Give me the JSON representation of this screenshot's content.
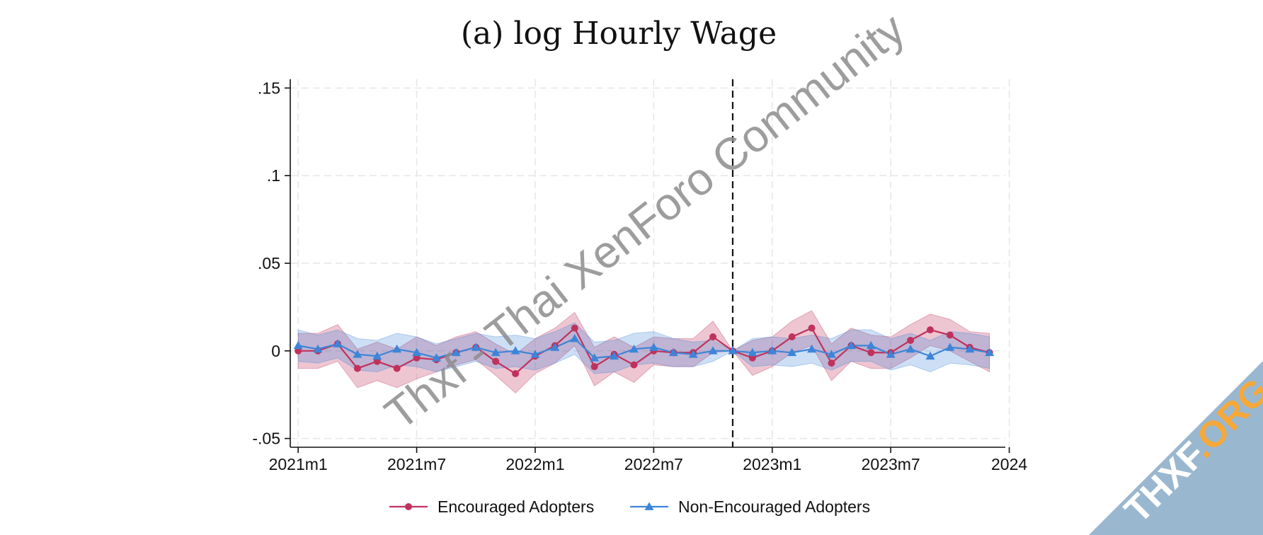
{
  "chart_data": {
    "type": "line",
    "title": "(a) log Hourly Wage",
    "xlabel": "",
    "ylabel": "",
    "x_ticks": [
      "2021m1",
      "2021m7",
      "2022m1",
      "2022m7",
      "2023m1",
      "2023m7",
      "2024"
    ],
    "x_tick_values": [
      0,
      6,
      12,
      18,
      24,
      30,
      36
    ],
    "xlim": [
      -0.4,
      35.8
    ],
    "y_ticks": [
      ".15",
      ".1",
      ".05",
      "0",
      "-.05"
    ],
    "y_tick_values": [
      0.15,
      0.1,
      0.05,
      0,
      -0.05
    ],
    "ylim": [
      -0.055,
      0.155
    ],
    "grid": true,
    "event_line_x": 22,
    "legend": {
      "position": "bottom-center"
    },
    "x": [
      0,
      1,
      2,
      3,
      4,
      5,
      6,
      7,
      8,
      9,
      10,
      11,
      12,
      13,
      14,
      15,
      16,
      17,
      18,
      19,
      20,
      21,
      22,
      23,
      24,
      25,
      26,
      27,
      28,
      29,
      30,
      31,
      32,
      33,
      34,
      35
    ],
    "series": [
      {
        "name": "Encouraged Adopters",
        "color": "#c0325d",
        "marker": "circle",
        "values": [
          0.0,
          0.0,
          0.004,
          -0.01,
          -0.006,
          -0.01,
          -0.004,
          -0.005,
          -0.001,
          0.002,
          -0.006,
          -0.013,
          -0.003,
          0.003,
          0.013,
          -0.009,
          -0.002,
          -0.008,
          0.0,
          -0.001,
          -0.001,
          0.008,
          0.0,
          -0.004,
          0.0,
          0.008,
          0.013,
          -0.007,
          0.003,
          -0.001,
          -0.001,
          0.006,
          0.012,
          0.009,
          0.002,
          -0.001
        ],
        "ci_low": [
          -0.01,
          -0.01,
          -0.006,
          -0.021,
          -0.017,
          -0.021,
          -0.016,
          -0.012,
          -0.008,
          -0.005,
          -0.014,
          -0.024,
          -0.013,
          -0.007,
          0.003,
          -0.02,
          -0.012,
          -0.018,
          -0.008,
          -0.009,
          -0.009,
          -0.001,
          0.0,
          -0.014,
          -0.009,
          -0.001,
          0.003,
          -0.017,
          -0.006,
          -0.01,
          -0.01,
          -0.004,
          0.003,
          0.0,
          -0.006,
          -0.012
        ],
        "ci_high": [
          0.01,
          0.01,
          0.015,
          0.001,
          0.005,
          0.001,
          0.008,
          0.003,
          0.008,
          0.011,
          0.004,
          -0.002,
          0.007,
          0.013,
          0.022,
          0.002,
          0.008,
          0.002,
          0.008,
          0.007,
          0.007,
          0.017,
          0.0,
          0.006,
          0.008,
          0.017,
          0.023,
          0.004,
          0.013,
          0.009,
          0.008,
          0.015,
          0.021,
          0.018,
          0.011,
          0.01
        ]
      },
      {
        "name": "Non-Encouraged Adopters",
        "color": "#3d85d8",
        "marker": "triangle",
        "values": [
          0.003,
          0.001,
          0.004,
          -0.002,
          -0.003,
          0.001,
          -0.001,
          -0.004,
          -0.001,
          0.002,
          -0.001,
          0.0,
          -0.002,
          0.002,
          0.007,
          -0.004,
          -0.003,
          0.001,
          0.002,
          -0.001,
          -0.002,
          0.0,
          0.0,
          -0.001,
          0.0,
          -0.001,
          0.001,
          -0.002,
          0.003,
          0.003,
          -0.002,
          0.001,
          -0.003,
          0.002,
          0.001,
          -0.001
        ],
        "ci_low": [
          -0.006,
          -0.007,
          -0.004,
          -0.011,
          -0.012,
          -0.008,
          -0.009,
          -0.012,
          -0.009,
          -0.006,
          -0.01,
          -0.009,
          -0.011,
          -0.007,
          -0.002,
          -0.013,
          -0.012,
          -0.008,
          -0.007,
          -0.009,
          -0.009,
          -0.006,
          0.0,
          -0.009,
          -0.008,
          -0.009,
          -0.007,
          -0.011,
          -0.006,
          -0.006,
          -0.011,
          -0.008,
          -0.012,
          -0.007,
          -0.008,
          -0.01
        ],
        "ci_high": [
          0.012,
          0.009,
          0.012,
          0.007,
          0.006,
          0.01,
          0.008,
          0.004,
          0.007,
          0.01,
          0.008,
          0.009,
          0.007,
          0.011,
          0.016,
          0.005,
          0.006,
          0.01,
          0.011,
          0.007,
          0.005,
          0.006,
          0.0,
          0.007,
          0.008,
          0.007,
          0.009,
          0.007,
          0.012,
          0.012,
          0.007,
          0.01,
          0.006,
          0.011,
          0.01,
          0.008
        ]
      }
    ]
  },
  "watermark": {
    "diagonal_text": "Thxf - Thai XenForo Community",
    "corner_text_main": "THXF",
    "corner_text_accent": ".ORG"
  }
}
